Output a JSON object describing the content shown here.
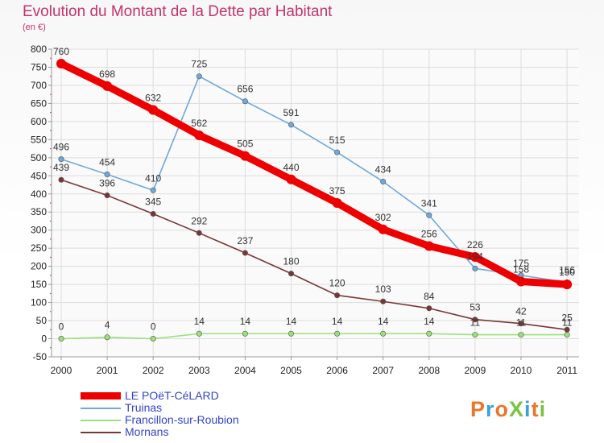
{
  "chart_data": {
    "type": "line",
    "title": "Evolution du Montant de la Dette par Habitant",
    "subtitle": "(en €)",
    "x": [
      "2000",
      "2001",
      "2002",
      "2003",
      "2004",
      "2005",
      "2006",
      "2007",
      "2008",
      "2009",
      "2010",
      "2011"
    ],
    "ylim": [
      -50,
      800
    ],
    "yticks": [
      -50,
      0,
      50,
      100,
      150,
      200,
      250,
      300,
      350,
      400,
      450,
      500,
      550,
      600,
      650,
      700,
      750,
      800
    ],
    "grid": true,
    "legend_position": "bottom-left",
    "series": [
      {
        "name": "LE POëT-CéLARD",
        "color": "#ee0000",
        "values": [
          760,
          698,
          632,
          562,
          505,
          440,
          375,
          302,
          256,
          226,
          158,
          150
        ],
        "labels": [
          "760",
          "698",
          "632",
          "562",
          "505",
          "440",
          "375",
          "302",
          "256",
          "226",
          "158",
          "150"
        ]
      },
      {
        "name": "Truinas",
        "color": "#6fa8dc",
        "values": [
          496,
          454,
          410,
          725,
          656,
          591,
          515,
          434,
          341,
          194,
          175,
          156
        ],
        "labels": [
          "496",
          "454",
          "410",
          "725",
          "656",
          "591",
          "515",
          "434",
          "341",
          "194",
          "175",
          "156"
        ]
      },
      {
        "name": "Francillon-sur-Roubion",
        "color": "#99e27a",
        "values": [
          0,
          4,
          0,
          14,
          14,
          14,
          14,
          14,
          14,
          11,
          11,
          11
        ],
        "labels": [
          "0",
          "4",
          "0",
          "14",
          "14",
          "14",
          "14",
          "14",
          "14",
          "11",
          "11",
          "11"
        ]
      },
      {
        "name": "Mornans",
        "color": "#7a3535",
        "values": [
          439,
          396,
          345,
          292,
          237,
          180,
          120,
          103,
          84,
          53,
          42,
          25
        ],
        "labels": [
          "439",
          "396",
          "345",
          "292",
          "237",
          "180",
          "120",
          "103",
          "84",
          "53",
          "42",
          "25"
        ]
      }
    ]
  },
  "logo": {
    "text": "ProXiti",
    "colors": [
      "#e8762b",
      "#3aa0d8",
      "#e8762b",
      "#7cc242",
      "#3aa0d8",
      "#e8762b",
      "#7cc242"
    ]
  }
}
